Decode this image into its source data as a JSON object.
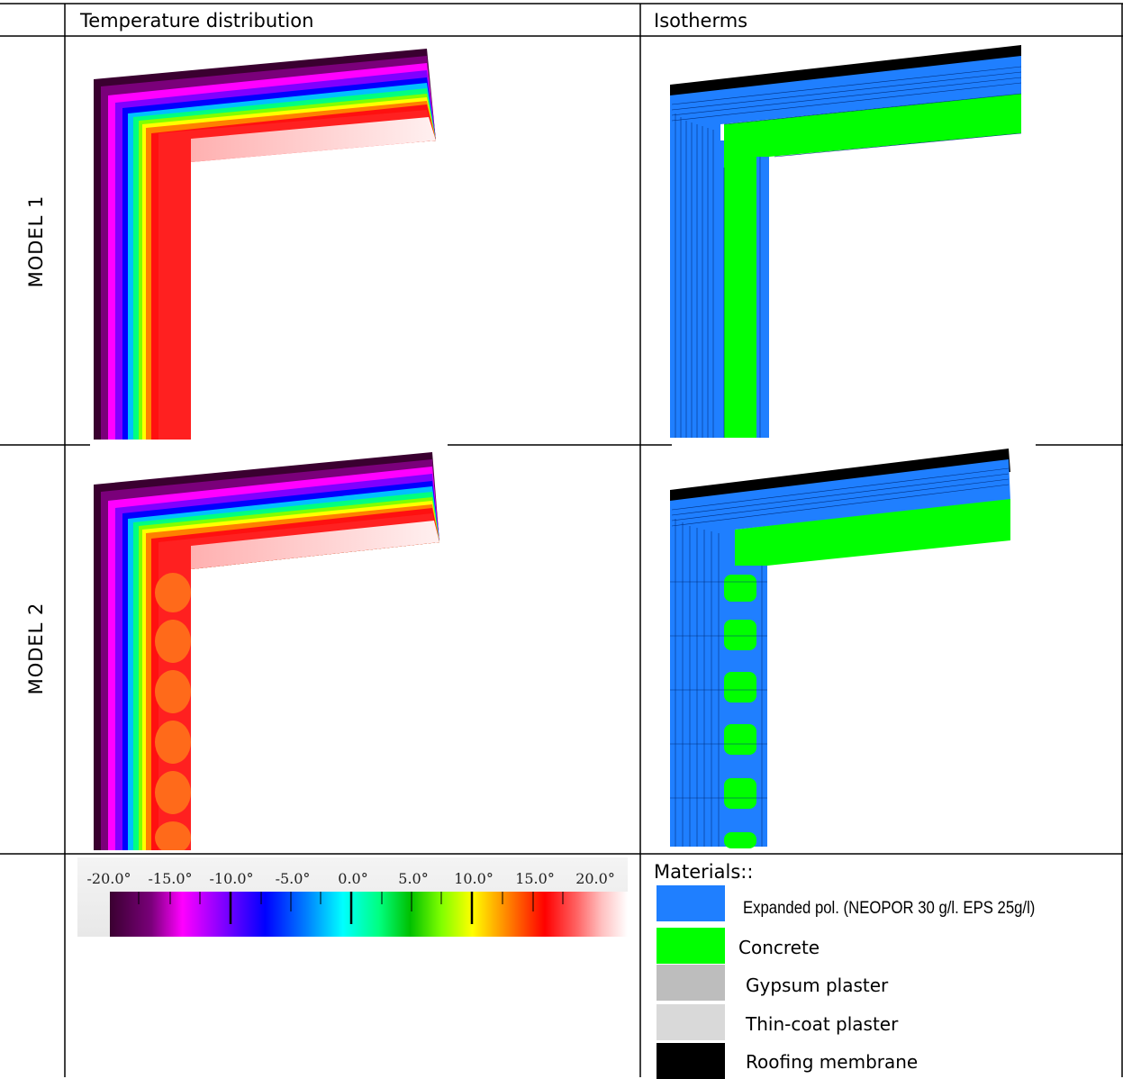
{
  "headers": {
    "temperature": "Temperature distribution",
    "isotherms": "Isotherms"
  },
  "rows": [
    {
      "label": "MODEL 1"
    },
    {
      "label": "MODEL 2"
    }
  ],
  "scale": {
    "ticks": [
      "-20.0°",
      "-15.0°",
      "-10.0°",
      "-5.0°",
      "0.0°",
      "5.0°",
      "10.0°",
      "15.0°",
      "20.0°"
    ]
  },
  "materials": {
    "title": "Materials::",
    "items": [
      {
        "name": "Expanded pol. (NEOPOR 30 g/l. EPS 25g/l)",
        "color": "#1f7fff"
      },
      {
        "name": "Concrete",
        "color": "#00ff00"
      },
      {
        "name": "Gypsum plaster",
        "color": "#bdbdbd"
      },
      {
        "name": "Thin-coat plaster",
        "color": "#d9d9d9"
      },
      {
        "name": "Roofing membrane",
        "color": "#000000"
      }
    ]
  }
}
